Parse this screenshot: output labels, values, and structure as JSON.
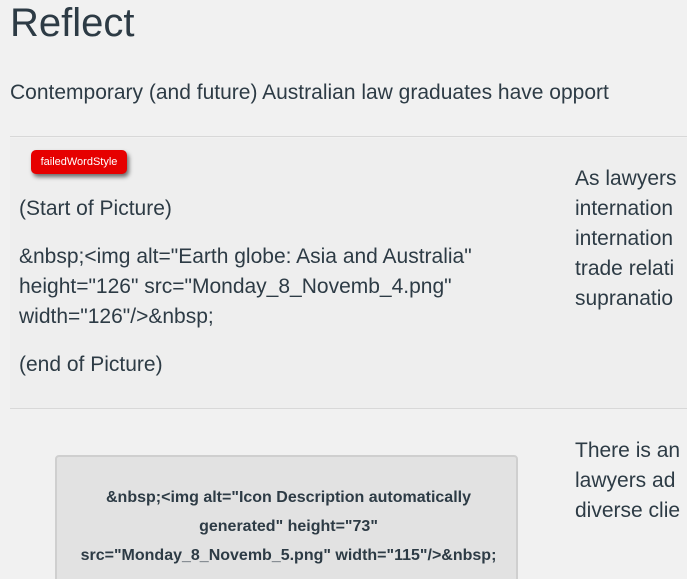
{
  "page": {
    "title": "Reflect",
    "intro": "Contemporary (and future) Australian law graduates have opport"
  },
  "row1": {
    "badge": "failedWordStyle",
    "picture_start": "(Start of Picture)",
    "picture_code_lines": [
      "&nbsp;<img alt=\"Earth globe: Asia and Australia\"",
      "height=\"126\" src=\"Monday_8_Novemb_4.png\"",
      "width=\"126\"/>&nbsp;"
    ],
    "picture_end": "(end of Picture)",
    "right_lines": [
      "As lawyers",
      "internation",
      "internation",
      "trade relati",
      "supranatio"
    ]
  },
  "row2": {
    "icon_box_lines": [
      "&nbsp;<img alt=\"Icon Description automatically",
      "generated\" height=\"73\"",
      "src=\"Monday_8_Novemb_5.png\" width=\"115\"/>&nbsp;"
    ],
    "right_lines": [
      "There is an",
      "lawyers ad",
      "diverse clie"
    ]
  },
  "colors": {
    "text": "#2d3b45",
    "badge_bg": "#e60000",
    "page_bg": "#f1f1f1"
  }
}
